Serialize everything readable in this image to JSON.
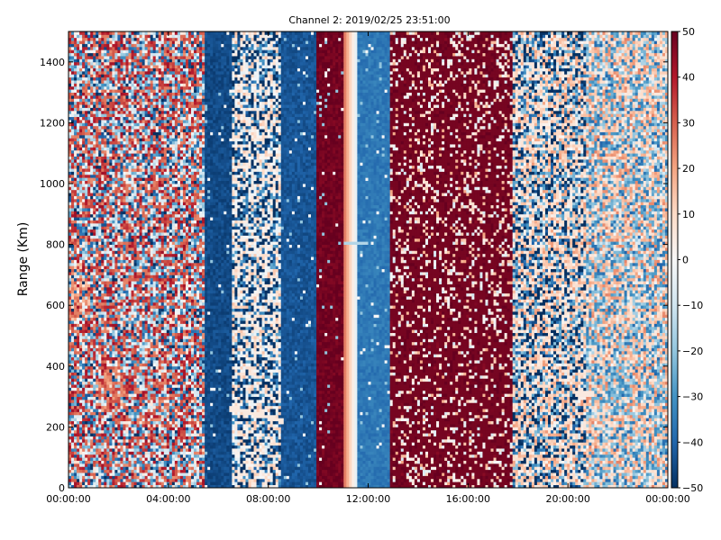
{
  "chart_data": {
    "type": "heatmap",
    "title": "Channel 2: 2019/02/25 23:51:00",
    "ylabel": "Range (Km)",
    "xlabel": "",
    "x_ticks": [
      "00:00:00",
      "04:00:00",
      "08:00:00",
      "12:00:00",
      "16:00:00",
      "20:00:00",
      "00:00:00"
    ],
    "x_range_hours": [
      0,
      24
    ],
    "y_ticks": [
      0,
      200,
      400,
      600,
      800,
      1000,
      1200,
      1400
    ],
    "y_range": [
      0,
      1500
    ],
    "colorbar": {
      "range": [
        -50,
        50
      ],
      "ticks": [
        50,
        40,
        30,
        20,
        10,
        0,
        -10,
        -20,
        -30,
        -40,
        -50
      ],
      "colormap": "RdBu_r",
      "colors": [
        "#053061",
        "#2166ac",
        "#4393c3",
        "#92c5de",
        "#d1e5f0",
        "#f7f7f7",
        "#fddbc7",
        "#f4a582",
        "#d6604d",
        "#b2182b",
        "#67001f"
      ]
    },
    "time_bands": [
      {
        "start": 0.0,
        "end": 5.4,
        "pattern": "noise",
        "mean": 8,
        "spread": 100
      },
      {
        "start": 5.4,
        "end": 6.5,
        "pattern": "solid",
        "mean": -45
      },
      {
        "start": 6.5,
        "end": 8.5,
        "pattern": "noise",
        "mean": -15,
        "spread": 90
      },
      {
        "start": 8.5,
        "end": 9.9,
        "pattern": "solid",
        "mean": -43
      },
      {
        "start": 9.9,
        "end": 11.0,
        "pattern": "solid",
        "mean": 49
      },
      {
        "start": 11.0,
        "end": 11.6,
        "pattern": "gradient",
        "from": 30,
        "to": -10
      },
      {
        "start": 11.6,
        "end": 12.9,
        "pattern": "solid",
        "mean": -36
      },
      {
        "start": 12.9,
        "end": 17.8,
        "pattern": "noise",
        "mean": 30,
        "spread": 60
      },
      {
        "start": 17.8,
        "end": 20.7,
        "pattern": "noise",
        "mean": -8,
        "spread": 100
      },
      {
        "start": 20.7,
        "end": 24.0,
        "pattern": "noise",
        "mean": -5,
        "spread": 50
      }
    ],
    "features": [
      {
        "kind": "blob",
        "center_hours": 1.8,
        "center_km": 330,
        "value": 28
      },
      {
        "kind": "blob",
        "center_hours": 0.3,
        "center_km": 640,
        "value": 22
      },
      {
        "kind": "blob",
        "center_hours": 22.0,
        "center_km": 340,
        "value": -24
      },
      {
        "kind": "line",
        "from_hours": 6.4,
        "from_km": 265,
        "to_hours": 8.6,
        "to_km": 220,
        "value": 5
      },
      {
        "kind": "line",
        "from_hours": 20.3,
        "from_km": 310,
        "to_hours": 21.0,
        "to_km": 310,
        "value": 5
      },
      {
        "kind": "line",
        "from_hours": 11.0,
        "from_km": 805,
        "to_hours": 12.0,
        "to_km": 805,
        "value": -15
      }
    ]
  }
}
